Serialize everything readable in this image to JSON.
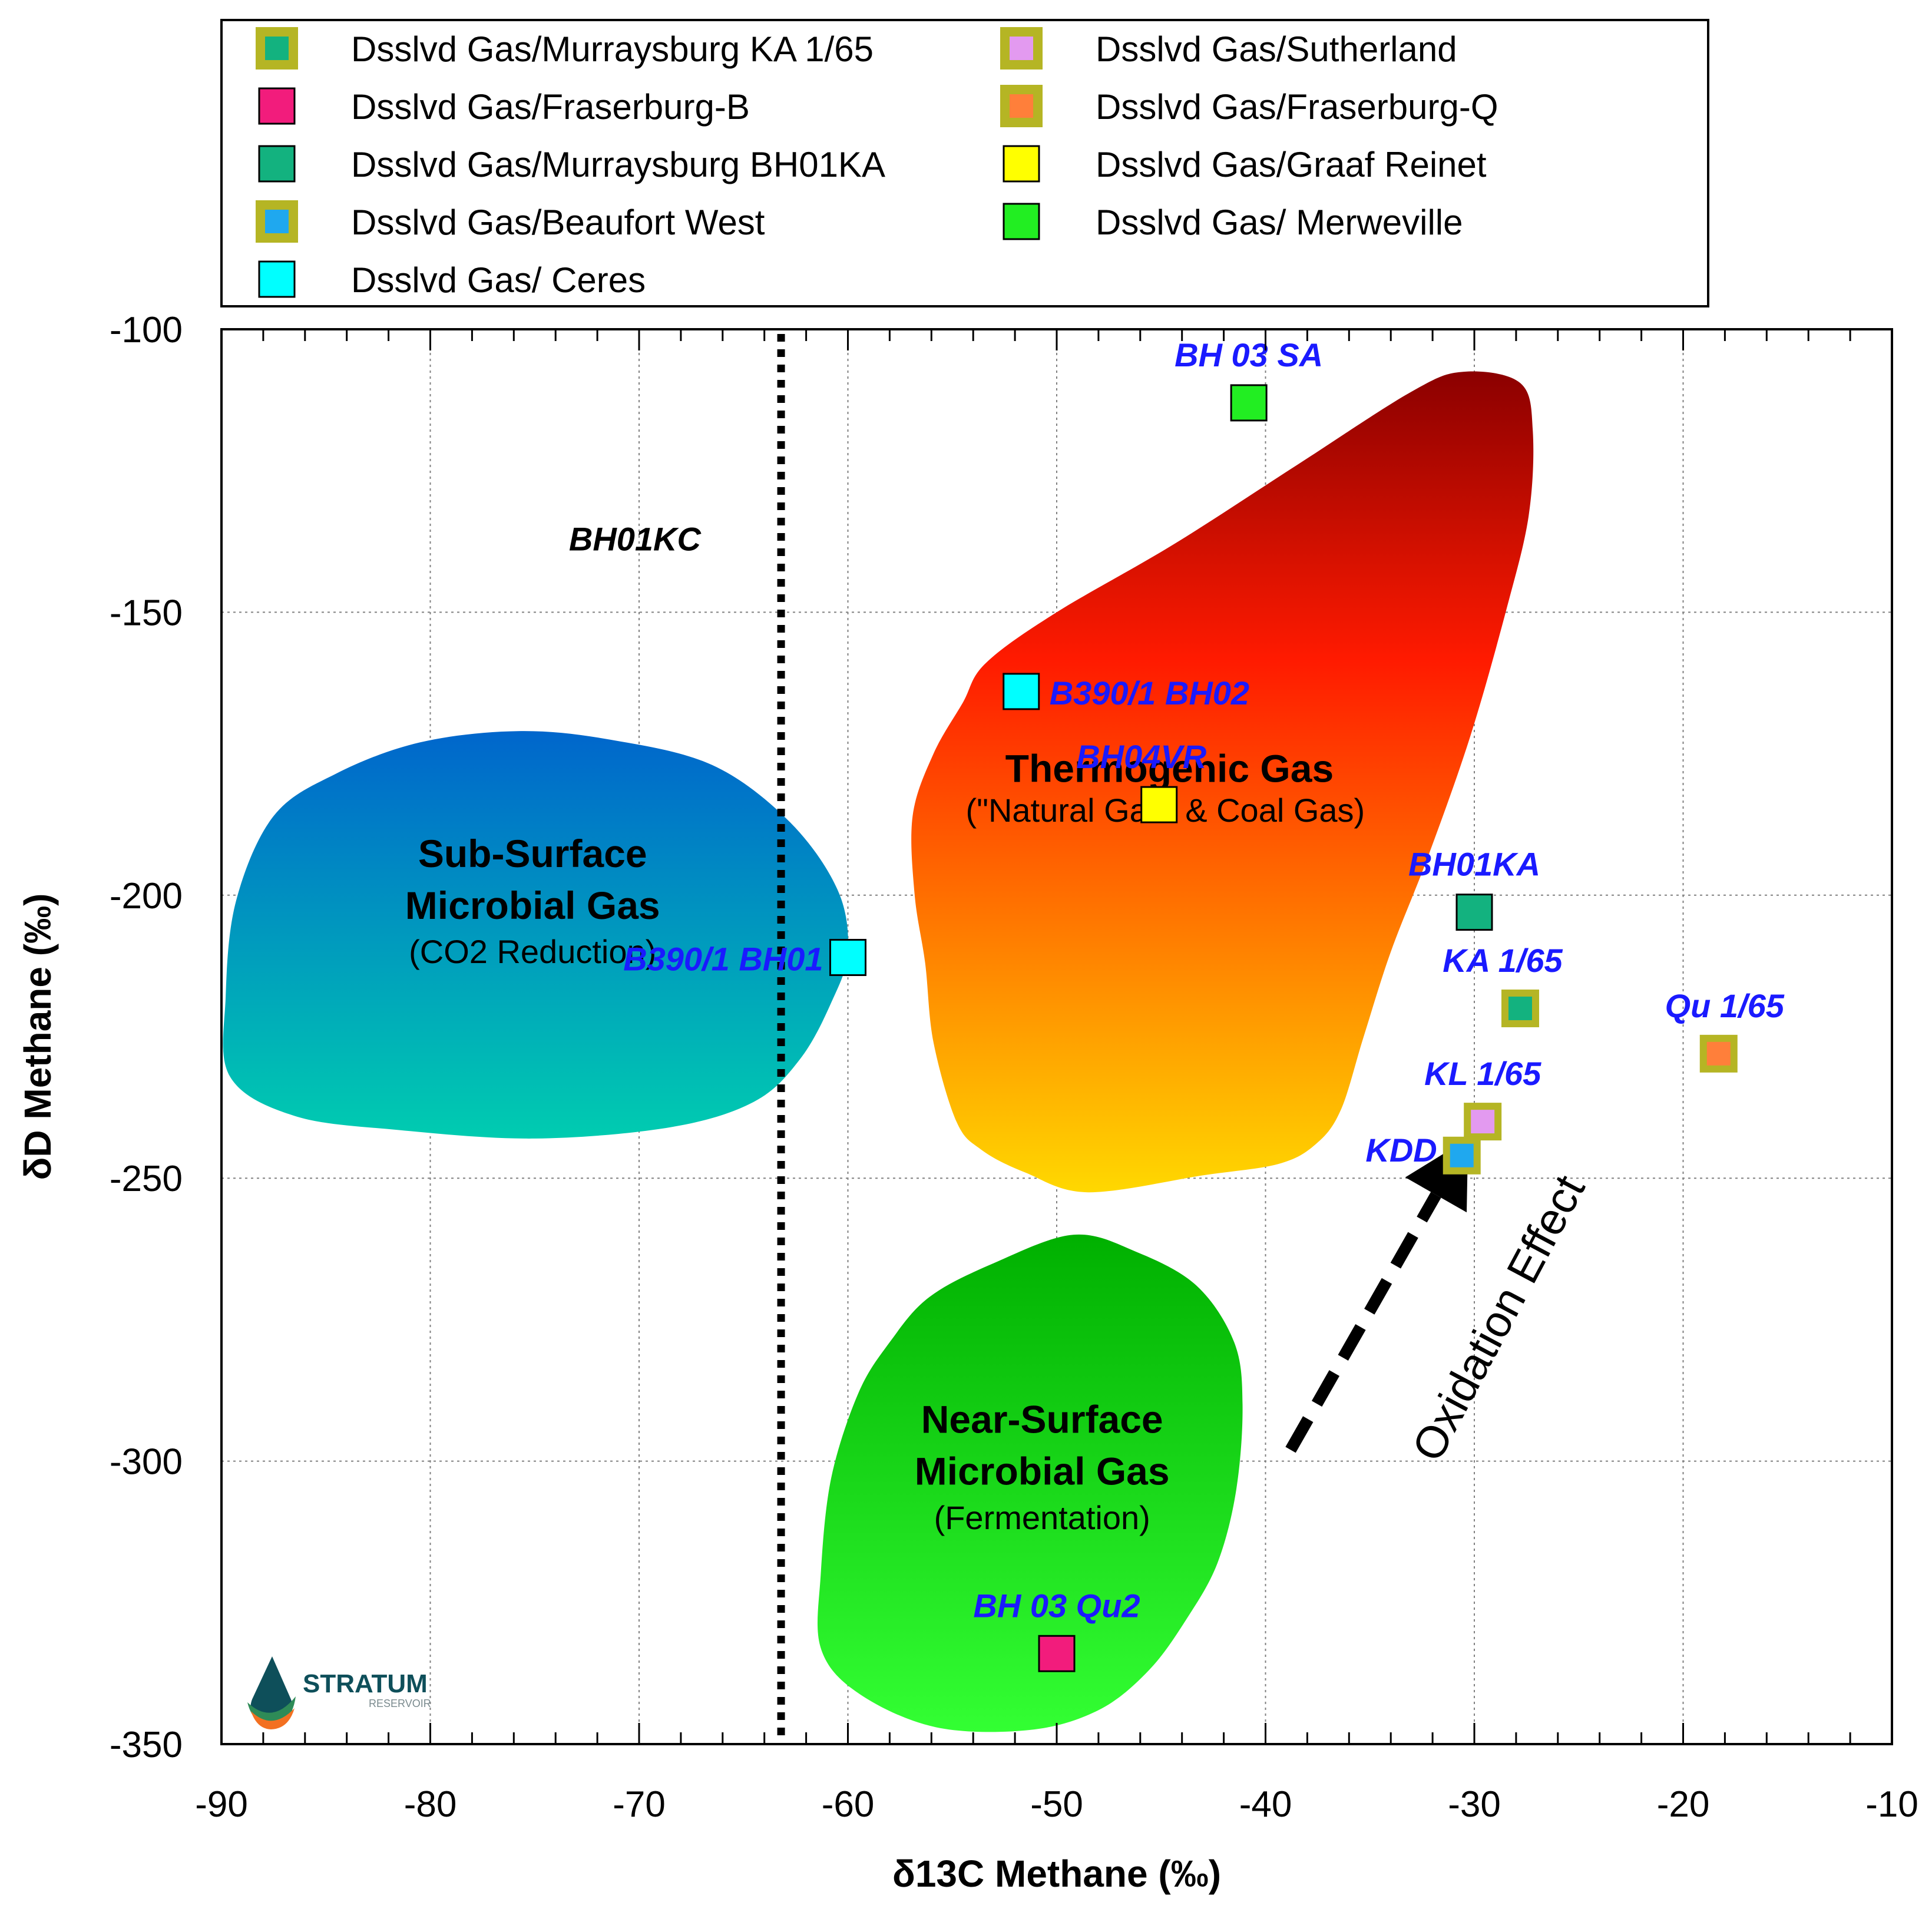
{
  "chart_data": {
    "type": "scatter",
    "title": "",
    "xlabel": "δ13C Methane (‰)",
    "ylabel": "δD Methane (‰)",
    "xlim": [
      -90,
      -10
    ],
    "ylim": [
      -350,
      -100
    ],
    "x_ticks": [
      "-90",
      "-80",
      "-70",
      "-60",
      "-50",
      "-40",
      "-30",
      "-20",
      "-10"
    ],
    "y_ticks": [
      "-100",
      "-150",
      "-200",
      "-250",
      "-300",
      "-350"
    ],
    "x_tick_values": [
      -90,
      -80,
      -70,
      -60,
      -50,
      -40,
      -30,
      -20,
      -10
    ],
    "y_tick_values": [
      -100,
      -150,
      -200,
      -250,
      -300,
      -350
    ],
    "grid": true,
    "legend_position": "top",
    "legend": [
      {
        "label": "Dsslvd Gas/Murraysburg KA 1/65",
        "fill": "#13B27F",
        "border": "#B5B524"
      },
      {
        "label": "Dsslvd Gas/Sutherland",
        "fill": "#E39AF0",
        "border": "#B5B524"
      },
      {
        "label": "Dsslvd Gas/Fraserburg-B",
        "fill": "#F21C7C",
        "border": "#000000"
      },
      {
        "label": "Dsslvd Gas/Fraserburg-Q",
        "fill": "#FF7F3A",
        "border": "#B5B524"
      },
      {
        "label": "Dsslvd Gas/Murraysburg BH01KA",
        "fill": "#13B27F",
        "border": "#000000"
      },
      {
        "label": "Dsslvd Gas/Graaf Reinet",
        "fill": "#FFFF00",
        "border": "#000000"
      },
      {
        "label": "Dsslvd Gas/Beaufort West",
        "fill": "#1FA8EF",
        "border": "#B5B524"
      },
      {
        "label": "Dsslvd Gas/ Merweville",
        "fill": "#22EE22",
        "border": "#000000"
      },
      {
        "label": "Dsslvd Gas/ Ceres",
        "fill": "#00FFFF",
        "border": "#000000"
      }
    ],
    "points": [
      {
        "label": "BH 03 SA",
        "x": -40.8,
        "y": -113,
        "fill": "#22EE22",
        "border": "#000000"
      },
      {
        "label": "B390/1 BH02",
        "x": -51.7,
        "y": -164,
        "fill": "#00FFFF",
        "border": "#000000"
      },
      {
        "label": "BH04VR",
        "x": -45.1,
        "y": -184,
        "fill": "#FFFF00",
        "border": "#000000"
      },
      {
        "label": "B390/1 BH01",
        "x": -60.0,
        "y": -211,
        "fill": "#00FFFF",
        "border": "#000000"
      },
      {
        "label": "BH01KA",
        "x": -30.0,
        "y": -203,
        "fill": "#13B27F",
        "border": "#000000"
      },
      {
        "label": "KA 1/65",
        "x": -27.8,
        "y": -220,
        "fill": "#13B27F",
        "border": "#B5B524"
      },
      {
        "label": "Qu 1/65",
        "x": -18.3,
        "y": -228,
        "fill": "#FF7F3A",
        "border": "#B5B524"
      },
      {
        "label": "KL 1/65",
        "x": -29.6,
        "y": -240,
        "fill": "#E39AF0",
        "border": "#B5B524"
      },
      {
        "label": "KDD",
        "x": -30.6,
        "y": -246,
        "fill": "#1FA8EF",
        "border": "#B5B524"
      },
      {
        "label": "BH 03 Qu2",
        "x": -50.0,
        "y": -334,
        "fill": "#F21C7C",
        "border": "#000000"
      }
    ],
    "annotations": {
      "dotted_line_label": "BH01KC",
      "dotted_line_x": -63.2,
      "oxidation_label": "Oxidation Effect",
      "oxidation_arrow": {
        "from": [
          -38.8,
          -298
        ],
        "to": [
          -30.3,
          -243
        ]
      }
    },
    "regions": [
      {
        "name": "thermogenic",
        "title": "Thermogenic Gas",
        "subtitle": "(\"Natural Gas\" & Coal Gas)",
        "title_at": [
          -44.6,
          -180
        ],
        "subtitle_at": [
          -44.8,
          -187
        ],
        "color_top": "#8B0000",
        "color_mid": "#FF1A00",
        "color_bottom": "#FFD800",
        "outline": [
          [
            -30.5,
            -107.5
          ],
          [
            -27.8,
            -109.5
          ],
          [
            -27.2,
            -118
          ],
          [
            -27.4,
            -133
          ],
          [
            -28.5,
            -150
          ],
          [
            -30.2,
            -172
          ],
          [
            -32.2,
            -193
          ],
          [
            -34.0,
            -210
          ],
          [
            -35.3,
            -225
          ],
          [
            -36.4,
            -238
          ],
          [
            -37.6,
            -244
          ],
          [
            -39.4,
            -247.5
          ],
          [
            -43,
            -249.5
          ],
          [
            -48.5,
            -252.5
          ],
          [
            -51.5,
            -249
          ],
          [
            -53.6,
            -245
          ],
          [
            -54.8,
            -240
          ],
          [
            -55.9,
            -226
          ],
          [
            -56.3,
            -212
          ],
          [
            -56.8,
            -200
          ],
          [
            -56.9,
            -186
          ],
          [
            -55.9,
            -175
          ],
          [
            -54.5,
            -166
          ],
          [
            -53.4,
            -159
          ],
          [
            -50,
            -150
          ],
          [
            -44.4,
            -138
          ],
          [
            -38.5,
            -124
          ],
          [
            -33,
            -111
          ]
        ]
      },
      {
        "name": "subsurface",
        "title_lines": [
          "Sub-Surface",
          "Microbial Gas"
        ],
        "subtitle": "(CO2 Reduction)",
        "title_at": [
          -75.1,
          -195
        ],
        "subtitle_at": [
          -75.1,
          -212
        ],
        "color_top": "#0066CC",
        "color_bottom": "#00CCB0",
        "outline": [
          [
            -75.8,
            -171
          ],
          [
            -71.4,
            -172.5
          ],
          [
            -66.5,
            -177
          ],
          [
            -62.8,
            -187
          ],
          [
            -60.5,
            -199
          ],
          [
            -60.0,
            -210
          ],
          [
            -60.8,
            -219
          ],
          [
            -62.3,
            -229
          ],
          [
            -64.5,
            -236.5
          ],
          [
            -68.5,
            -241
          ],
          [
            -75,
            -243
          ],
          [
            -81.5,
            -241.5
          ],
          [
            -86.5,
            -239
          ],
          [
            -89.6,
            -232
          ],
          [
            -89.8,
            -218
          ],
          [
            -89.3,
            -201
          ],
          [
            -87.5,
            -186
          ],
          [
            -84.5,
            -178.5
          ],
          [
            -80.5,
            -173
          ]
        ]
      },
      {
        "name": "nearsurface",
        "title_lines": [
          "Near-Surface",
          "Microbial Gas"
        ],
        "subtitle": "(Fermentation)",
        "title_at": [
          -50.7,
          -295
        ],
        "subtitle_at": [
          -50.7,
          -312
        ],
        "color_top": "#00B000",
        "color_bottom": "#33FF33",
        "outline": [
          [
            -49.2,
            -260
          ],
          [
            -46.2,
            -263
          ],
          [
            -43.3,
            -269
          ],
          [
            -41.5,
            -279
          ],
          [
            -41.1,
            -290
          ],
          [
            -41.4,
            -305
          ],
          [
            -42.3,
            -318
          ],
          [
            -43.8,
            -328
          ],
          [
            -45.6,
            -337
          ],
          [
            -48,
            -344
          ],
          [
            -51.3,
            -347.5
          ],
          [
            -55.8,
            -347
          ],
          [
            -59.5,
            -341
          ],
          [
            -61.3,
            -333
          ],
          [
            -61.3,
            -320
          ],
          [
            -60.8,
            -303
          ],
          [
            -59.5,
            -288
          ],
          [
            -58,
            -279
          ],
          [
            -56.1,
            -271
          ],
          [
            -53,
            -265
          ]
        ]
      }
    ]
  },
  "logo": {
    "name": "STRATUM",
    "sub": "RESERVOIR"
  }
}
